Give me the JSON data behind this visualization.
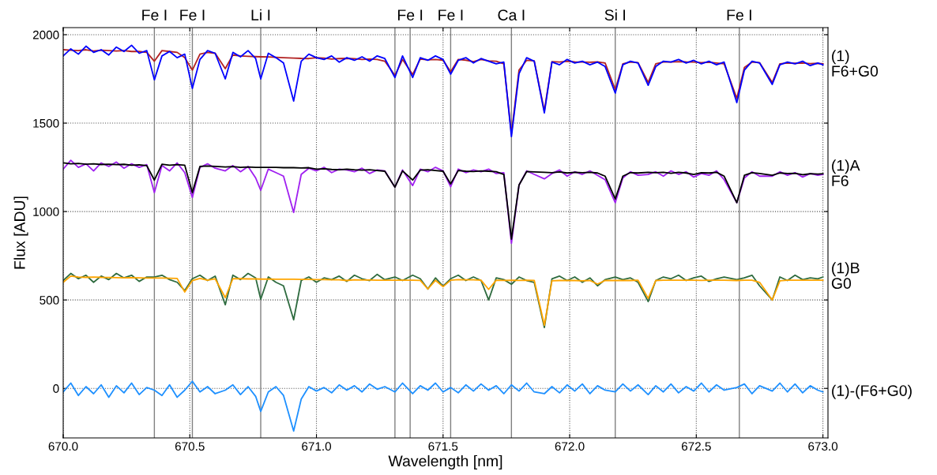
{
  "chart_data": {
    "type": "line",
    "xlabel": "Wavelength [nm]",
    "ylabel": "Flux [ADU]",
    "xlim": [
      670.0,
      673.02
    ],
    "ylim": [
      -280,
      2040
    ],
    "xticks": [
      {
        "value": 670,
        "label": "670.0"
      },
      670.5,
      {
        "value": 671,
        "label": "671.0"
      },
      671.5,
      {
        "value": 672,
        "label": "672.0"
      },
      672.5,
      {
        "value": 673,
        "label": "673.0"
      }
    ],
    "yticks": [
      0,
      500,
      1000,
      1500,
      2000
    ],
    "grid": true,
    "legend": false,
    "line_style": "solid",
    "marker": "none",
    "x": [
      670.0,
      670.03,
      670.06,
      670.09,
      670.12,
      670.15,
      670.18,
      670.21,
      670.24,
      670.27,
      670.3,
      670.33,
      670.36,
      670.39,
      670.42,
      670.45,
      670.48,
      670.51,
      670.54,
      670.57,
      670.6,
      670.64,
      670.67,
      670.7,
      670.73,
      670.76,
      670.78,
      670.81,
      670.84,
      670.87,
      670.91,
      670.94,
      670.97,
      671.0,
      671.03,
      671.06,
      671.09,
      671.12,
      671.15,
      671.18,
      671.21,
      671.24,
      671.27,
      671.31,
      671.34,
      671.38,
      671.41,
      671.44,
      671.47,
      671.5,
      671.53,
      671.56,
      671.59,
      671.62,
      671.65,
      671.68,
      671.71,
      671.74,
      671.77,
      671.8,
      671.83,
      671.86,
      671.9,
      671.93,
      671.96,
      671.99,
      672.02,
      672.05,
      672.08,
      672.11,
      672.14,
      672.18,
      672.21,
      672.24,
      672.27,
      672.31,
      672.34,
      672.37,
      672.4,
      672.43,
      672.46,
      672.49,
      672.52,
      672.55,
      672.58,
      672.61,
      672.66,
      672.69,
      672.72,
      672.75,
      672.8,
      672.83,
      672.86,
      672.89,
      672.92,
      672.95,
      672.98,
      673.0
    ],
    "series": [
      {
        "color": "#b22222",
        "values": [
          1915,
          1912,
          1910,
          1915,
          1908,
          1912,
          1910,
          1908,
          1910,
          1905,
          1905,
          1900,
          1850,
          1910,
          1905,
          1900,
          1870,
          1800,
          1890,
          1900,
          1895,
          1808,
          1885,
          1880,
          1878,
          1876,
          1875,
          1874,
          1872,
          1870,
          1868,
          1866,
          1865,
          1870,
          1868,
          1862,
          1865,
          1866,
          1864,
          1860,
          1862,
          1860,
          1850,
          1770,
          1860,
          1775,
          1862,
          1858,
          1860,
          1856,
          1790,
          1860,
          1856,
          1848,
          1860,
          1852,
          1850,
          1835,
          1440,
          1800,
          1855,
          1852,
          1570,
          1848,
          1845,
          1850,
          1846,
          1845,
          1844,
          1846,
          1840,
          1690,
          1835,
          1845,
          1842,
          1730,
          1835,
          1845,
          1845,
          1848,
          1846,
          1845,
          1842,
          1844,
          1840,
          1835,
          1640,
          1815,
          1845,
          1842,
          1730,
          1835,
          1840,
          1838,
          1840,
          1836,
          1838,
          1836
        ]
      },
      {
        "name": "(1)\nF6+G0",
        "color": "#0000ff",
        "values": [
          1880,
          1920,
          1890,
          1935,
          1900,
          1915,
          1885,
          1930,
          1905,
          1940,
          1895,
          1910,
          1745,
          1880,
          1905,
          1870,
          1890,
          1696,
          1860,
          1910,
          1895,
          1750,
          1900,
          1875,
          1910,
          1865,
          1750,
          1895,
          1870,
          1840,
          1625,
          1850,
          1890,
          1870,
          1860,
          1880,
          1845,
          1870,
          1855,
          1875,
          1850,
          1880,
          1865,
          1758,
          1880,
          1758,
          1870,
          1855,
          1880,
          1860,
          1777,
          1855,
          1870,
          1840,
          1865,
          1850,
          1835,
          1845,
          1424,
          1780,
          1870,
          1850,
          1558,
          1845,
          1830,
          1860,
          1840,
          1850,
          1830,
          1845,
          1820,
          1670,
          1830,
          1850,
          1840,
          1714,
          1820,
          1850,
          1845,
          1860,
          1840,
          1855,
          1835,
          1850,
          1830,
          1845,
          1616,
          1800,
          1850,
          1840,
          1719,
          1830,
          1845,
          1835,
          1850,
          1825,
          1840,
          1830
        ]
      },
      {
        "name": "(1)A\nF6",
        "color": "#a020f0",
        "values": [
          1240,
          1290,
          1250,
          1270,
          1230,
          1275,
          1255,
          1280,
          1245,
          1270,
          1250,
          1265,
          1107,
          1260,
          1230,
          1275,
          1220,
          1080,
          1250,
          1270,
          1245,
          1230,
          1260,
          1225,
          1255,
          1190,
          1120,
          1240,
          1220,
          1200,
          995,
          1210,
          1245,
          1230,
          1250,
          1220,
          1240,
          1235,
          1225,
          1245,
          1215,
          1235,
          1230,
          1138,
          1235,
          1147,
          1240,
          1225,
          1250,
          1230,
          1140,
          1240,
          1220,
          1235,
          1225,
          1240,
          1215,
          1220,
          820,
          1150,
          1230,
          1210,
          1185,
          1215,
          1235,
          1200,
          1225,
          1210,
          1230,
          1205,
          1180,
          1050,
          1190,
          1225,
          1205,
          1210,
          1225,
          1200,
          1230,
          1210,
          1225,
          1195,
          1215,
          1205,
          1230,
          1180,
          1050,
          1190,
          1225,
          1200,
          1200,
          1225,
          1205,
          1220,
          1195,
          1215,
          1205,
          1210
        ]
      },
      {
        "color": "#000000",
        "values": [
          1275,
          1270,
          1272,
          1268,
          1270,
          1266,
          1268,
          1265,
          1267,
          1262,
          1264,
          1260,
          1178,
          1268,
          1262,
          1265,
          1262,
          1107,
          1255,
          1258,
          1255,
          1252,
          1254,
          1250,
          1252,
          1250,
          1250,
          1250,
          1250,
          1248,
          1248,
          1246,
          1248,
          1240,
          1242,
          1238,
          1236,
          1240,
          1236,
          1234,
          1236,
          1232,
          1228,
          1138,
          1230,
          1178,
          1234,
          1236,
          1232,
          1228,
          1156,
          1232,
          1228,
          1226,
          1230,
          1228,
          1225,
          1210,
          844,
          1150,
          1226,
          1224,
          1222,
          1220,
          1224,
          1218,
          1222,
          1220,
          1222,
          1218,
          1200,
          1071,
          1200,
          1220,
          1218,
          1222,
          1220,
          1222,
          1216,
          1222,
          1218,
          1210,
          1220,
          1218,
          1222,
          1200,
          1050,
          1205,
          1220,
          1215,
          1205,
          1218,
          1215,
          1216,
          1208,
          1214,
          1212,
          1214
        ]
      },
      {
        "name": "(1)B\nG0",
        "color": "#2e6b3f",
        "values": [
          610,
          650,
          620,
          640,
          600,
          635,
          615,
          650,
          625,
          640,
          605,
          630,
          630,
          640,
          615,
          600,
          553,
          620,
          640,
          610,
          635,
          473,
          640,
          615,
          650,
          625,
          504,
          630,
          600,
          580,
          388,
          610,
          630,
          600,
          625,
          615,
          635,
          605,
          640,
          620,
          610,
          645,
          615,
          630,
          610,
          640,
          620,
          562,
          625,
          578,
          620,
          640,
          610,
          630,
          610,
          500,
          625,
          615,
          589,
          630,
          610,
          600,
          344,
          620,
          635,
          610,
          630,
          600,
          625,
          580,
          615,
          630,
          615,
          625,
          600,
          491,
          610,
          630,
          620,
          640,
          610,
          625,
          635,
          605,
          620,
          630,
          615,
          625,
          640,
          580,
          500,
          630,
          610,
          640,
          615,
          625,
          620,
          630
        ]
      },
      {
        "color": "#ffa500",
        "values": [
          600,
          635,
          630,
          628,
          630,
          628,
          627,
          626,
          625,
          626,
          625,
          624,
          624,
          624,
          623,
          622,
          545,
          610,
          622,
          612,
          620,
          513,
          620,
          620,
          619,
          619,
          618,
          618,
          617,
          617,
          617,
          616,
          616,
          615,
          615,
          614,
          614,
          610,
          614,
          613,
          613,
          612,
          612,
          612,
          612,
          612,
          611,
          562,
          611,
          575,
          612,
          615,
          614,
          614,
          612,
          560,
          612,
          611,
          612,
          611,
          612,
          611,
          357,
          608,
          610,
          610,
          610,
          608,
          610,
          590,
          610,
          610,
          610,
          610,
          612,
          509,
          610,
          612,
          612,
          612,
          612,
          612,
          611,
          612,
          612,
          612,
          610,
          612,
          612,
          600,
          500,
          608,
          612,
          612,
          612,
          612,
          612,
          612
        ]
      },
      {
        "name": "(1)-(F6+G0)",
        "color": "#1e90ff",
        "values": [
          -20,
          30,
          -40,
          10,
          -30,
          20,
          -50,
          15,
          -25,
          30,
          -35,
          5,
          -10,
          -40,
          20,
          -50,
          -10,
          40,
          -20,
          10,
          -30,
          -10,
          20,
          -35,
          10,
          -45,
          -130,
          -20,
          10,
          -40,
          -241,
          -60,
          10,
          -15,
          5,
          -25,
          20,
          -10,
          15,
          -20,
          25,
          -5,
          10,
          -20,
          30,
          -30,
          15,
          -10,
          30,
          -20,
          5,
          -25,
          20,
          -15,
          25,
          -10,
          15,
          -30,
          20,
          -15,
          30,
          -20,
          -30,
          10,
          -25,
          20,
          -15,
          25,
          -30,
          15,
          -10,
          -20,
          25,
          -15,
          20,
          -35,
          15,
          -20,
          25,
          -25,
          10,
          -15,
          30,
          -20,
          20,
          -10,
          5,
          25,
          -30,
          15,
          -15,
          30,
          -20,
          25,
          -25,
          15,
          -10,
          -20
        ]
      }
    ],
    "ref_lines": [
      {
        "axis": "x",
        "value": 670.36,
        "label": "Fe I",
        "color": "#808080"
      },
      {
        "axis": "x",
        "value": 670.51,
        "label": "Fe I",
        "color": "#808080"
      },
      {
        "axis": "x",
        "value": 670.78,
        "label": "Li I",
        "color": "#808080"
      },
      {
        "axis": "x",
        "value": 671.31,
        "label": null,
        "color": "#808080"
      },
      {
        "axis": "x",
        "value": 671.37,
        "label": "Fe I",
        "color": "#808080"
      },
      {
        "axis": "x",
        "value": 671.53,
        "label": "Fe I",
        "color": "#808080"
      },
      {
        "axis": "x",
        "value": 671.77,
        "label": "Ca I",
        "color": "#808080"
      },
      {
        "axis": "x",
        "value": 672.18,
        "label": "Si I",
        "color": "#808080"
      },
      {
        "axis": "x",
        "value": 672.67,
        "label": "Fe I",
        "color": "#808080"
      }
    ]
  }
}
